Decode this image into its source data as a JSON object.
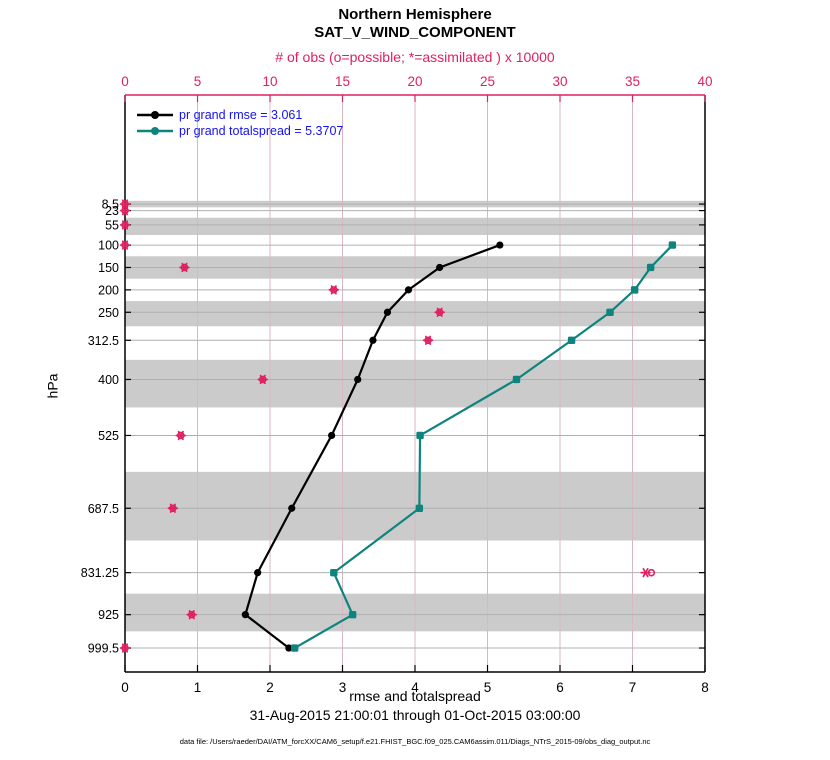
{
  "figure": {
    "title_line1": "Northern Hemisphere",
    "title_line2": "SAT_V_WIND_COMPONENT",
    "top_axis_label": "# of obs (o=possible; *=assimilated ) x 10000",
    "bottom_axis_label": "rmse and totalspread",
    "y_axis_label": "hPa",
    "timespan": "31-Aug-2015 21:00:01 through 01-Oct-2015 03:00:00",
    "datafile": "data file: /Users/raeder/DAI/ATM_forcXX/CAM6_setup/f.e21.FHIST_BGC.f09_025.CAM6assim.011/Diags_NTrS_2015-09/obs_diag_output.nc"
  },
  "legend": {
    "text_color": "#1412ee",
    "entries": [
      {
        "label": "pr grand rmse = 3.061",
        "color": "#000000"
      },
      {
        "label": "pr grand totalspread = 5.3707",
        "color": "#0e847e"
      }
    ]
  },
  "colors": {
    "accent_pink": "#e0205f",
    "grid_pink": "#dab7c6",
    "band_gray": "#cbcbcb",
    "level_line_gray": "#b0b0b0",
    "rmse_black": "#000000",
    "spread_teal": "#0e847e"
  },
  "chart_data": {
    "type": "line",
    "orientation": "vertical-profile",
    "grid": true,
    "legend_position": "top-left-inside",
    "y_axis": {
      "label": "hPa",
      "direction": "increasing-downward",
      "range": [
        -235,
        1053
      ],
      "levels": [
        8.5,
        23,
        55,
        100,
        150,
        200,
        250,
        312.5,
        400,
        525,
        687.5,
        831.25,
        925,
        999.5
      ],
      "tick_labels": [
        "8.5",
        "23",
        "55",
        "100",
        "150",
        "200",
        "250",
        "312.5",
        "400",
        "525",
        "687.5",
        "831.25",
        "925",
        "999.5"
      ],
      "shaded_levels": [
        8.5,
        55,
        150,
        250,
        400,
        687.5,
        925
      ]
    },
    "x_bottom_axis": {
      "label": "rmse and totalspread",
      "range": [
        0,
        8
      ],
      "ticks": [
        0,
        1,
        2,
        3,
        4,
        5,
        6,
        7,
        8
      ]
    },
    "x_top_axis": {
      "label": "# of obs (o=possible; *=assimilated ) x 10000",
      "range": [
        0,
        40
      ],
      "ticks": [
        0,
        5,
        10,
        15,
        20,
        25,
        30,
        35,
        40
      ]
    },
    "series": [
      {
        "name": "pr grand rmse = 3.061",
        "color": "#000000",
        "marker": "circle",
        "levels": [
          100,
          150,
          200,
          250,
          312.5,
          400,
          525,
          687.5,
          831.25,
          925,
          999.5
        ],
        "values": [
          5.17,
          4.34,
          3.91,
          3.62,
          3.42,
          3.21,
          2.85,
          2.3,
          1.83,
          1.66,
          2.26
        ]
      },
      {
        "name": "pr grand totalspread = 5.3707",
        "color": "#0e847e",
        "marker": "square",
        "levels": [
          100,
          150,
          200,
          250,
          312.5,
          400,
          525,
          687.5,
          831.25,
          925,
          999.5
        ],
        "values": [
          7.55,
          7.25,
          7.03,
          6.69,
          6.16,
          5.4,
          4.07,
          4.06,
          2.88,
          3.14,
          2.34
        ]
      }
    ],
    "obs_counts": {
      "units": "x 10000",
      "color": "#e0205f",
      "levels": [
        8.5,
        23,
        55,
        100,
        150,
        200,
        250,
        312.5,
        400,
        525,
        687.5,
        831.25,
        925,
        999.5
      ],
      "possible": [
        0,
        0,
        0,
        0,
        4.1,
        14.4,
        21.7,
        20.9,
        9.5,
        3.85,
        3.3,
        36.3,
        4.6,
        0
      ],
      "assimilated": [
        0,
        0,
        0,
        0,
        4.1,
        14.4,
        21.7,
        20.9,
        9.5,
        3.85,
        3.3,
        35.9,
        4.6,
        0
      ]
    }
  }
}
